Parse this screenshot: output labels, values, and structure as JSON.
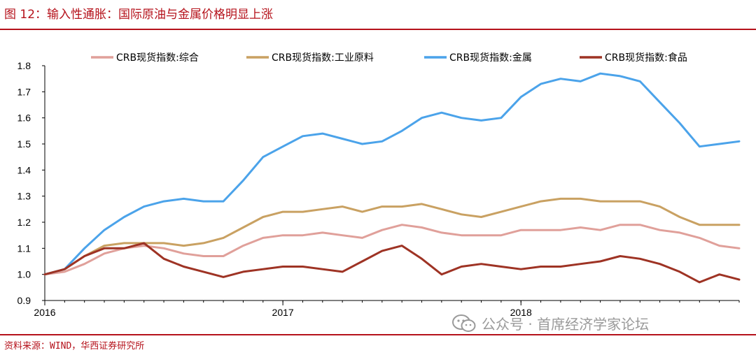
{
  "header": {
    "figure_title": "图 12：输入性通胀：国际原油与金属价格明显上涨"
  },
  "footer": {
    "source": "资料来源：WIND，华西证券研究所"
  },
  "watermark": {
    "text": "公众号 · 首席经济学家论坛",
    "icon": "wechat-icon"
  },
  "colors": {
    "accent": "#b5121b",
    "composite": "#e0a09a",
    "raw_industrials": "#c9a162",
    "metals": "#4ba3ea",
    "foodstuffs": "#9e3324"
  },
  "chart_data": {
    "type": "line",
    "title": "",
    "xlabel": "",
    "ylabel": "",
    "ylim": [
      0.9,
      1.8
    ],
    "yticks": [
      "0.9",
      "1.0",
      "1.1",
      "1.2",
      "1.3",
      "1.4",
      "1.5",
      "1.6",
      "1.7",
      "1.8"
    ],
    "xlim": [
      "2016-01",
      "2018-12"
    ],
    "xticks": [
      "2016",
      "2017",
      "2018"
    ],
    "grid": false,
    "legend": "top",
    "x": [
      "2016-01",
      "2016-02",
      "2016-03",
      "2016-04",
      "2016-05",
      "2016-06",
      "2016-07",
      "2016-08",
      "2016-09",
      "2016-10",
      "2016-11",
      "2016-12",
      "2017-01",
      "2017-02",
      "2017-03",
      "2017-04",
      "2017-05",
      "2017-06",
      "2017-07",
      "2017-08",
      "2017-09",
      "2017-10",
      "2017-11",
      "2017-12",
      "2018-01",
      "2018-02",
      "2018-03",
      "2018-04",
      "2018-05",
      "2018-06",
      "2018-07",
      "2018-08",
      "2018-09",
      "2018-10",
      "2018-11",
      "2018-12"
    ],
    "series": [
      {
        "name": "CRB现货指数:综合",
        "color": "#e0a09a",
        "values": [
          1.0,
          1.01,
          1.04,
          1.08,
          1.1,
          1.11,
          1.1,
          1.08,
          1.07,
          1.07,
          1.11,
          1.14,
          1.15,
          1.15,
          1.16,
          1.15,
          1.14,
          1.17,
          1.19,
          1.18,
          1.16,
          1.15,
          1.15,
          1.15,
          1.17,
          1.17,
          1.17,
          1.18,
          1.17,
          1.19,
          1.19,
          1.17,
          1.16,
          1.14,
          1.11,
          1.1
        ]
      },
      {
        "name": "CRB现货指数:工业原料",
        "color": "#c9a162",
        "values": [
          1.0,
          1.02,
          1.07,
          1.11,
          1.12,
          1.12,
          1.12,
          1.11,
          1.12,
          1.14,
          1.18,
          1.22,
          1.24,
          1.24,
          1.25,
          1.26,
          1.24,
          1.26,
          1.26,
          1.27,
          1.25,
          1.23,
          1.22,
          1.24,
          1.26,
          1.28,
          1.29,
          1.29,
          1.28,
          1.28,
          1.28,
          1.26,
          1.22,
          1.19,
          1.19,
          1.19
        ]
      },
      {
        "name": "CRB现货指数:金属",
        "color": "#4ba3ea",
        "values": [
          1.0,
          1.02,
          1.1,
          1.17,
          1.22,
          1.26,
          1.28,
          1.29,
          1.28,
          1.28,
          1.36,
          1.45,
          1.49,
          1.53,
          1.54,
          1.52,
          1.5,
          1.51,
          1.55,
          1.6,
          1.62,
          1.6,
          1.59,
          1.6,
          1.68,
          1.73,
          1.75,
          1.74,
          1.77,
          1.76,
          1.74,
          1.66,
          1.58,
          1.49,
          1.5,
          1.51
        ]
      },
      {
        "name": "CRB现货指数:食品",
        "color": "#9e3324",
        "values": [
          1.0,
          1.02,
          1.07,
          1.1,
          1.1,
          1.12,
          1.06,
          1.03,
          1.01,
          0.99,
          1.01,
          1.02,
          1.03,
          1.03,
          1.02,
          1.01,
          1.05,
          1.09,
          1.11,
          1.06,
          1.0,
          1.03,
          1.04,
          1.03,
          1.02,
          1.03,
          1.03,
          1.04,
          1.05,
          1.07,
          1.06,
          1.04,
          1.01,
          0.97,
          1.0,
          0.98
        ]
      }
    ]
  }
}
